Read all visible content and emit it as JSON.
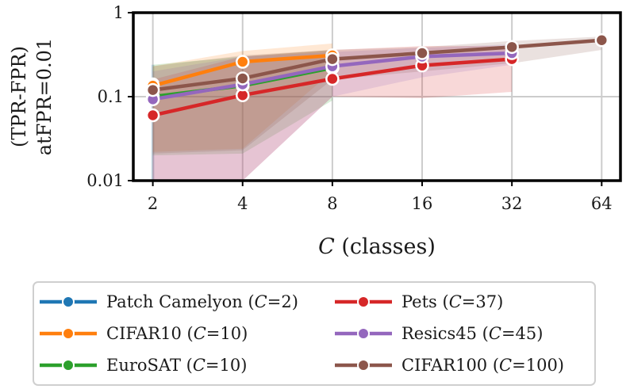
{
  "chart_data": {
    "type": "line",
    "title": "",
    "xlabel_italic": "C",
    "xlabel_rest": " (classes)",
    "ylabel_line1": "(TPR-FPR)",
    "ylabel_line2": "atFPR=0.01",
    "xscale": "log2",
    "yscale": "log10",
    "xlim": [
      1.72,
      74
    ],
    "ylim": [
      0.01,
      1
    ],
    "x_ticks": [
      2,
      4,
      8,
      16,
      32,
      64
    ],
    "x_tick_labels": [
      "2",
      "4",
      "8",
      "16",
      "32",
      "64"
    ],
    "y_ticks": [
      0.01,
      0.1,
      1
    ],
    "y_tick_labels": [
      "0.01",
      "0.1",
      "1"
    ],
    "grid": true,
    "legend_position": "below",
    "series": [
      {
        "name": "Patch Camelyon",
        "C_label": "2",
        "color": "#1f77b4",
        "x": [
          2
        ],
        "y": [
          0.14
        ],
        "lower": [
          0.01
        ],
        "upper": [
          0.24
        ]
      },
      {
        "name": "CIFAR10",
        "C_label": "10",
        "color": "#ff7f0e",
        "x": [
          2,
          4,
          8
        ],
        "y": [
          0.135,
          0.26,
          0.31
        ],
        "lower": [
          0.022,
          0.024,
          0.2
        ],
        "upper": [
          0.23,
          0.35,
          0.43
        ]
      },
      {
        "name": "EuroSAT",
        "C_label": "10",
        "color": "#2ca02c",
        "x": [
          2,
          4,
          8
        ],
        "y": [
          0.1,
          0.135,
          0.22
        ],
        "lower": [
          0.02,
          0.021,
          0.09
        ],
        "upper": [
          0.24,
          0.3,
          0.36
        ]
      },
      {
        "name": "Pets",
        "C_label": "37",
        "color": "#d62728",
        "x": [
          2,
          4,
          8,
          16,
          32
        ],
        "y": [
          0.06,
          0.104,
          0.163,
          0.235,
          0.28
        ],
        "lower": [
          0.01,
          0.01,
          0.1,
          0.096,
          0.114
        ],
        "upper": [
          0.16,
          0.3,
          0.36,
          0.4,
          0.4
        ]
      },
      {
        "name": "Resics45",
        "C_label": "45",
        "color": "#9467bd",
        "x": [
          2,
          4,
          8,
          16,
          32
        ],
        "y": [
          0.093,
          0.14,
          0.23,
          0.3,
          0.33
        ],
        "lower": [
          0.01,
          0.01,
          0.1,
          0.17,
          0.24
        ],
        "upper": [
          0.2,
          0.3,
          0.34,
          0.38,
          0.42
        ]
      },
      {
        "name": "CIFAR100",
        "C_label": "100",
        "color": "#8c564b",
        "x": [
          2,
          4,
          8,
          16,
          32,
          64
        ],
        "y": [
          0.12,
          0.165,
          0.28,
          0.33,
          0.39,
          0.47
        ],
        "lower": [
          0.021,
          0.023,
          0.16,
          0.2,
          0.25,
          0.36
        ],
        "upper": [
          0.23,
          0.31,
          0.36,
          0.39,
          0.46,
          0.52
        ]
      }
    ]
  }
}
